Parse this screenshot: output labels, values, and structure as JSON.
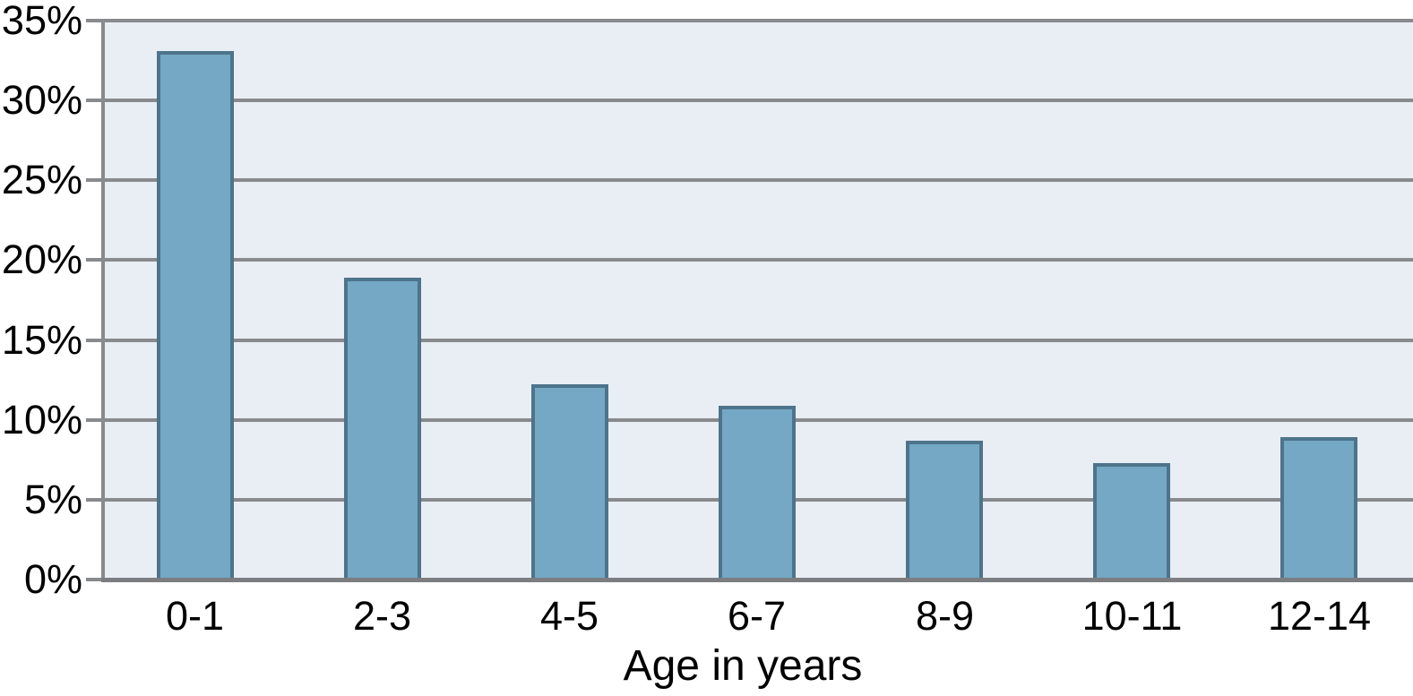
{
  "chart_data": {
    "type": "bar",
    "categories": [
      "0-1",
      "2-3",
      "4-5",
      "6-7",
      "8-9",
      "10-11",
      "12-14"
    ],
    "values": [
      33.1,
      18.9,
      12.2,
      10.9,
      8.7,
      7.3,
      8.9
    ],
    "title": "",
    "xlabel": "Age in years",
    "ylabel": "",
    "ylim": [
      0,
      35
    ],
    "ytick_step": 5,
    "ytick_labels": [
      "0%",
      "5%",
      "10%",
      "15%",
      "20%",
      "25%",
      "30%",
      "35%"
    ],
    "grid": true,
    "legend_position": "none",
    "colors": {
      "bar_fill": "#74a8c4",
      "bar_border": "#4d748b",
      "plot_background": "#e9eef4",
      "gridline": "#888a8d",
      "axis": "#7b7d80",
      "text": "#000000",
      "outer_background": "#ffffff"
    }
  }
}
